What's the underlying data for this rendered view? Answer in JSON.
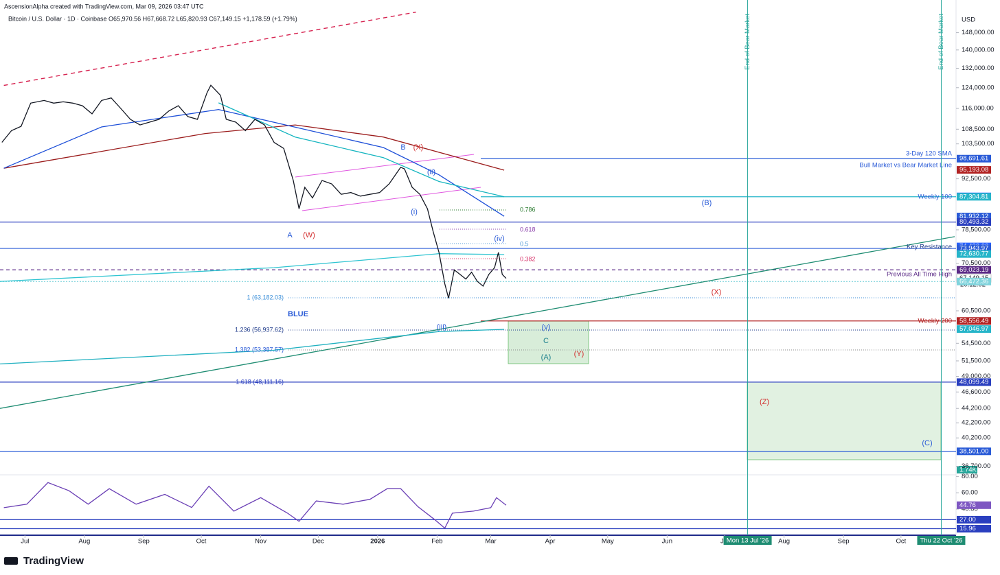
{
  "chart_data": {
    "type": "line",
    "credit": "AscensionAlpha created with TradingView.com, Mar 09, 2026 03:47 UTC",
    "legend_line": "Bitcoin / U.S. Dollar · 1D · Coinbase  O65,970.56 H67,668.72 L65,820.93 C67,149.15 +1,178.59 (+1.79%)",
    "currency": "USD",
    "countdown": "20:12:02",
    "volume_label": "1.74K",
    "brand": "TradingView",
    "log_scale": true,
    "xlim": [
      -13,
      485
    ],
    "ylim": [
      35700,
      164400
    ],
    "rsi_ylim": [
      8,
      82
    ],
    "xticks": [
      {
        "value": 0,
        "label": "Jul"
      },
      {
        "value": 31,
        "label": "Aug"
      },
      {
        "value": 62,
        "label": "Sep"
      },
      {
        "value": 92,
        "label": "Oct"
      },
      {
        "value": 123,
        "label": "Nov"
      },
      {
        "value": 153,
        "label": "Dec"
      },
      {
        "value": 184,
        "label": "2026"
      },
      {
        "value": 215,
        "label": "Feb"
      },
      {
        "value": 243,
        "label": "Mar"
      },
      {
        "value": 274,
        "label": "Apr"
      },
      {
        "value": 304,
        "label": "May"
      },
      {
        "value": 335,
        "label": "Jun"
      },
      {
        "value": 365,
        "label": "Jul"
      },
      {
        "value": 396,
        "label": "Aug"
      },
      {
        "value": 427,
        "label": "Sep"
      },
      {
        "value": 457,
        "label": "Oct"
      }
    ],
    "yticks": [
      {
        "value": 148000,
        "label": "148,000.00"
      },
      {
        "value": 140000,
        "label": "140,000.00"
      },
      {
        "value": 132000,
        "label": "132,000.00"
      },
      {
        "value": 124000,
        "label": "124,000.00"
      },
      {
        "value": 116000,
        "label": "116,000.00"
      },
      {
        "value": 108500,
        "label": "108,500.00"
      },
      {
        "value": 103500,
        "label": "103,500.00"
      },
      {
        "value": 92500,
        "label": "92,500.00"
      },
      {
        "value": 78500,
        "label": "78,500.00"
      },
      {
        "value": 70500,
        "label": "70,500.00"
      },
      {
        "value": 60500,
        "label": "60,500.00"
      },
      {
        "value": 54500,
        "label": "54,500.00"
      },
      {
        "value": 51500,
        "label": "51,500.00"
      },
      {
        "value": 49000,
        "label": "49,000.00"
      },
      {
        "value": 46600,
        "label": "46,600.00"
      },
      {
        "value": 44200,
        "label": "44,200.00"
      },
      {
        "value": 42200,
        "label": "42,200.00"
      },
      {
        "value": 40200,
        "label": "40,200.00"
      },
      {
        "value": 36700,
        "label": "36,700.00"
      }
    ],
    "rsi_yticks": [
      {
        "value": 80,
        "label": "80.00"
      },
      {
        "value": 60,
        "label": "60.00"
      },
      {
        "value": 40,
        "label": "40.00"
      }
    ],
    "levels": [
      {
        "value": 98691.61,
        "label": "98,691.61",
        "color": "#2a5bd7",
        "span": "partial"
      },
      {
        "value": 95193.08,
        "label": "95,193.08",
        "color": "#b22222",
        "span": "none"
      },
      {
        "value": 87407.77,
        "label": "87,407.77",
        "color": "#2962ff",
        "span": "none"
      },
      {
        "value": 87304.81,
        "label": "87,304.81",
        "color": "#26b5c9",
        "span": "partial"
      },
      {
        "value": 81932.12,
        "label": "81,932.12",
        "color": "#2a5bd7",
        "span": "none"
      },
      {
        "value": 80493.32,
        "label": "80,493.32",
        "color": "#2a3fbf",
        "span": "full"
      },
      {
        "value": 74420.0,
        "label": "74,420.00",
        "color": "#2962ff",
        "span": "none"
      },
      {
        "value": 73943.97,
        "label": "73,943.97",
        "color": "#2a5bd7",
        "span": "full"
      },
      {
        "value": 72630.77,
        "label": "72,630.77",
        "color": "#26b5c9",
        "span": "none"
      },
      {
        "value": 69023.19,
        "label": "69,023.19",
        "color": "#5b2a86",
        "span": "dashed"
      },
      {
        "value": 67149.15,
        "label": "67,149.15",
        "color": "#ffffff",
        "span": "none"
      },
      {
        "value": 66472.36,
        "label": "66,472.36",
        "color": "#7fd3dc",
        "span": "dotted"
      },
      {
        "value": 58556.49,
        "label": "58,556.49",
        "color": "#b22222",
        "span": "partial"
      },
      {
        "value": 57046.97,
        "label": "57,046.97",
        "color": "#26b5c9",
        "span": "none"
      },
      {
        "value": 48099.49,
        "label": "48,099.49",
        "color": "#2a3fbf",
        "span": "full"
      },
      {
        "value": 38501.0,
        "label": "38,501.00",
        "color": "#2a5bd7",
        "span": "full"
      }
    ],
    "rsi_levels": [
      {
        "value": 44.76,
        "label": "44.76",
        "color": "#7e57c2",
        "span": "none"
      },
      {
        "value": 27.0,
        "label": "27.00",
        "color": "#2a3fbf",
        "span": "full"
      },
      {
        "value": 15.96,
        "label": "15.96",
        "color": "#2a3fbf",
        "span": "full"
      }
    ],
    "series": [
      {
        "pane": "price",
        "color": "#d6204e",
        "style": "dashed",
        "x": [
          -11,
          204
        ],
        "values": [
          124900,
          158100
        ]
      },
      {
        "pane": "price",
        "color": "#1e8c72",
        "style": "solid",
        "x": [
          -13,
          485
        ],
        "values": [
          44200,
          76800
        ]
      },
      {
        "pane": "price",
        "color": "#2ec4d1",
        "style": "solid",
        "x": [
          -13,
          130,
          216,
          250
        ],
        "values": [
          66500,
          69500,
          72700,
          72500
        ]
      },
      {
        "pane": "price",
        "color": "#1fb0c0",
        "style": "solid",
        "x": [
          -13,
          130,
          216,
          250
        ],
        "values": [
          51000,
          53300,
          56600,
          57000
        ]
      },
      {
        "pane": "price",
        "color": "#9b1c1c",
        "style": "solid",
        "x": [
          -11,
          94,
          141,
          187,
          250
        ],
        "values": [
          95700,
          107000,
          110000,
          105800,
          95100
        ]
      },
      {
        "pane": "price",
        "color": "#1d4fd8",
        "style": "solid",
        "x": [
          -11,
          40,
          101,
          187,
          216,
          250
        ],
        "values": [
          95700,
          109300,
          115600,
          102300,
          93700,
          82000
        ]
      },
      {
        "pane": "price",
        "color": "#15b5c0",
        "style": "solid",
        "x": [
          101,
          141,
          187,
          216,
          250
        ],
        "values": [
          118100,
          105800,
          99000,
          91700,
          87300
        ]
      },
      {
        "pane": "price",
        "color": "#131722",
        "style": "solid",
        "x": [
          -12,
          -7,
          -2,
          3,
          10,
          15,
          20,
          25,
          30,
          35,
          40,
          45,
          50,
          55,
          60,
          65,
          70,
          75,
          80,
          85,
          90,
          95,
          97,
          102,
          105,
          110,
          115,
          120,
          125,
          130,
          135,
          140,
          143,
          146,
          150,
          155,
          160,
          165,
          170,
          175,
          180,
          185,
          190,
          196,
          198,
          202,
          206,
          210,
          213,
          216,
          219,
          221,
          224,
          227,
          230,
          233,
          236,
          239,
          242,
          245,
          247,
          249,
          251
        ],
        "values": [
          104000,
          108000,
          109500,
          118000,
          119000,
          118000,
          118500,
          118000,
          117000,
          114000,
          119000,
          120000,
          116000,
          112000,
          110000,
          111000,
          112000,
          115000,
          117000,
          113000,
          112000,
          122000,
          125000,
          121000,
          112000,
          111000,
          108000,
          112000,
          110000,
          104000,
          102000,
          92000,
          84000,
          90000,
          87000,
          92000,
          91000,
          88000,
          88500,
          87500,
          88000,
          88500,
          91000,
          96000,
          95500,
          90000,
          88000,
          84000,
          78000,
          73000,
          66000,
          63000,
          69000,
          68000,
          67000,
          68500,
          66500,
          65500,
          68000,
          69500,
          73000,
          68000,
          67149.15
        ]
      },
      {
        "pane": "rsi",
        "color": "#6a3fb5",
        "style": "solid",
        "x": [
          -11,
          1,
          12,
          23,
          33,
          44,
          58,
          73,
          87,
          96,
          109,
          123,
          137,
          143,
          152,
          166,
          180,
          189,
          196,
          205,
          214,
          219,
          223,
          234,
          243,
          246,
          251
        ],
        "values": [
          41.7,
          46,
          72.5,
          62.5,
          46,
          65,
          46,
          58,
          42,
          68,
          37.5,
          54,
          35,
          25,
          50,
          46,
          52,
          65,
          65,
          43,
          26.7,
          16.7,
          35,
          37.5,
          41.7,
          54,
          44.76
        ]
      }
    ],
    "line_labels": [
      {
        "text": "3-Day 120 SMA",
        "color": "#2a5bd7"
      },
      {
        "text": "Bull Market vs Bear Market Line",
        "color": "#2a5bd7"
      },
      {
        "text": "Weekly 100",
        "color": "#2a5bd7"
      },
      {
        "text": "Key Resistance",
        "color": "#1e3a8a"
      },
      {
        "text": "Previous All Time High",
        "color": "#5b2a86"
      },
      {
        "text": "Weekly 200",
        "color": "#b22222"
      }
    ],
    "fib_labels": [
      {
        "text": "0.786",
        "color": "#2e7d32"
      },
      {
        "text": "0.618",
        "color": "#8e44ad"
      },
      {
        "text": "0.5",
        "color": "#5aa0d8"
      },
      {
        "text": "0.382",
        "color": "#d9386e"
      },
      {
        "text": "1 (63,182.03)",
        "color": "#3b8fd9"
      },
      {
        "text": "1.236 (56,937.62)",
        "color": "#1e3a8a"
      },
      {
        "text": "1.382 (53,387.57)",
        "color": "#2a5bd7"
      },
      {
        "text": "1.618 (48,111.16)",
        "color": "#2a3fbf"
      }
    ],
    "annotations": [
      {
        "text": "B",
        "color": "#2a5bd7"
      },
      {
        "text": "(X)",
        "color": "#d32f2f"
      },
      {
        "text": "(ii)",
        "color": "#2a5bd7"
      },
      {
        "text": "(i)",
        "color": "#2a5bd7"
      },
      {
        "text": "A",
        "color": "#2a5bd7"
      },
      {
        "text": "(W)",
        "color": "#d32f2f"
      },
      {
        "text": "(iv)",
        "color": "#2a5bd7"
      },
      {
        "text": "(iii)",
        "color": "#2a5bd7"
      },
      {
        "text": "(v)",
        "color": "#2a5bd7"
      },
      {
        "text": "C",
        "color": "#1a7f8c"
      },
      {
        "text": "(A)",
        "color": "#1a7f8c"
      },
      {
        "text": "(Y)",
        "color": "#d32f2f"
      },
      {
        "text": "(X)",
        "color": "#d32f2f"
      },
      {
        "text": "(B)",
        "color": "#2a5bd7"
      },
      {
        "text": "(Z)",
        "color": "#d32f2f"
      },
      {
        "text": "(C)",
        "color": "#2a5bd7"
      },
      {
        "text": "BLUE",
        "color": "#2a5bd7"
      }
    ],
    "events": [
      {
        "x": 377,
        "text": "End of Bear Market",
        "label": "Mon 13 Jul '26"
      },
      {
        "x": 478,
        "text": "End of Bear Market",
        "label": "Thu 22 Oct '26"
      }
    ]
  }
}
